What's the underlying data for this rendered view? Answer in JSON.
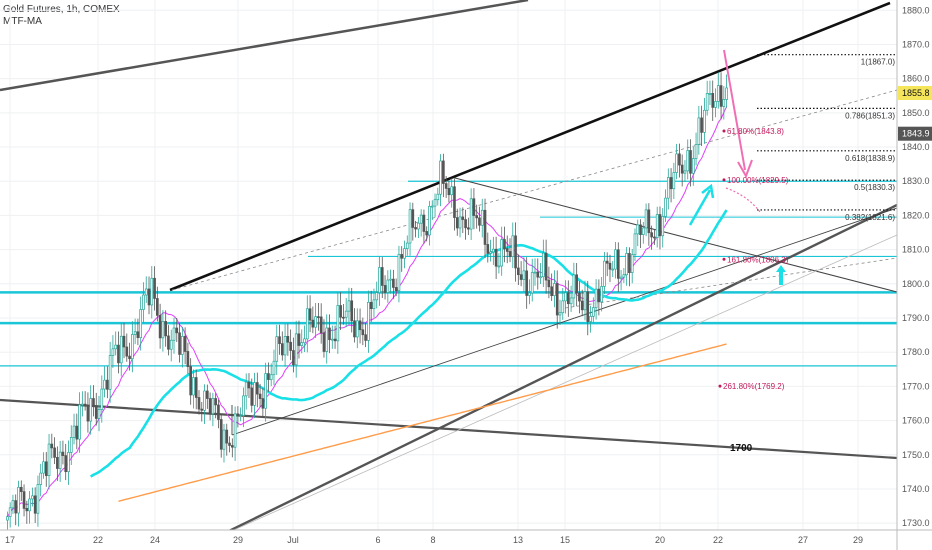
{
  "header": {
    "symbol_line": "Gold Futures, 1h, COMEX",
    "indicator": "MTF-MA"
  },
  "colors": {
    "candle_up": "#26a69a",
    "candle": "#555555",
    "ma_fast": "#e040fb",
    "ma_mid": "#19e0e6",
    "ma_slow": "#ff9c4a",
    "trend_black": "#111111",
    "trend_grey": "#555555",
    "level": "#19c5d6",
    "arrow_pink": "#f06fb4",
    "arrow_cyan": "#19e0e6",
    "last_price_bg": "#f5e55a",
    "current_bg": "#555555"
  },
  "chart_data": {
    "type": "candlestick",
    "title": "Gold Futures, 1h, COMEX",
    "indicator": "MTF-MA",
    "x_ticks": [
      "17",
      "22",
      "24",
      "29",
      "Jul",
      "6",
      "8",
      "13",
      "15",
      "20",
      "22",
      "27",
      "29"
    ],
    "y_ticks": [
      1730,
      1740,
      1750,
      1760,
      1770,
      1780,
      1790,
      1800,
      1810,
      1820,
      1830,
      1840,
      1850,
      1860,
      1870,
      1880
    ],
    "ylim": [
      1728,
      1883
    ],
    "grid": true,
    "price_labels": [
      {
        "value": 1855.8,
        "text": "1855.8",
        "style": "highlight"
      },
      {
        "value": 1843.9,
        "text": "1843.9",
        "style": "dark"
      }
    ],
    "fib_levels": [
      {
        "ratio": "1",
        "price": 1867.0,
        "label": "1(1867.0)"
      },
      {
        "ratio": "0.786",
        "price": 1851.3,
        "label": "0.786(1851.3)"
      },
      {
        "ratio": "0.618",
        "price": 1838.9,
        "label": "0.618(1838.9)"
      },
      {
        "ratio": "0.5",
        "price": 1830.3,
        "label": "0.5(1830.3)"
      },
      {
        "ratio": "0.382",
        "price": 1821.6,
        "label": "0.382(1821.6)"
      }
    ],
    "extension_labels": [
      {
        "price": 1843.8,
        "label": "61.80%(1843.8)"
      },
      {
        "price": 1829.5,
        "label": "100.00%(1829.5)"
      },
      {
        "price": 1806.3,
        "label": "161.80%(1806.3)"
      },
      {
        "price": 1769.2,
        "label": "261.80%(1769.2)"
      }
    ],
    "annotations": [
      {
        "text": "1700"
      }
    ],
    "horizontal_levels": [
      1830.0,
      1808.0,
      1797.5,
      1788.5,
      1776.0
    ],
    "series": [
      {
        "kind": "price",
        "x": [
          "17",
          "22",
          "24",
          "29",
          "Jul",
          "6",
          "8",
          "13",
          "15",
          "20",
          "22"
        ],
        "values": [
          1730,
          1758,
          1796,
          1755,
          1785,
          1790,
          1828,
          1806,
          1793,
          1818,
          1861
        ]
      }
    ]
  }
}
